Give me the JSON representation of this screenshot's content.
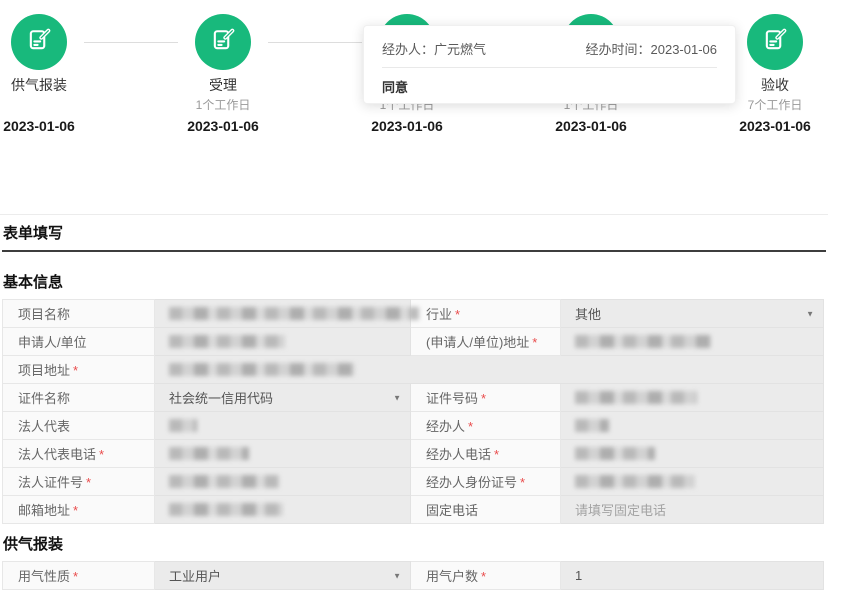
{
  "timeline": {
    "steps": [
      {
        "name": "供气报装",
        "duration": "",
        "date": "2023-01-06"
      },
      {
        "name": "受理",
        "duration": "1个工作日",
        "date": "2023-01-06"
      },
      {
        "name": "",
        "duration": "1个工作日",
        "date": "2023-01-06"
      },
      {
        "name": "",
        "duration": "1个工作日",
        "date": "2023-01-06"
      },
      {
        "name": "验收",
        "duration": "7个工作日",
        "date": "2023-01-06"
      }
    ],
    "tooltip": {
      "handler": "经办人：广元燃气",
      "time": "经办时间：2023-01-06",
      "opinion": "同意"
    }
  },
  "form": {
    "title": "表单填写",
    "required_marker": "*",
    "sections": [
      {
        "title": "基本信息",
        "rows": [
          {
            "cells": [
              {
                "label": "项目名称",
                "required": false,
                "type": "redacted",
                "blob_width": 250
              },
              {
                "label": "行业",
                "required": true,
                "type": "select",
                "value": "其他"
              }
            ]
          },
          {
            "cells": [
              {
                "label": "申请人/单位",
                "required": false,
                "type": "redacted",
                "blob_width": 116
              },
              {
                "label": "(申请人/单位)地址",
                "required": true,
                "type": "redacted",
                "blob_width": 136
              }
            ]
          },
          {
            "cells": [
              {
                "label": "项目地址",
                "required": true,
                "type": "redacted",
                "blob_width": 186,
                "full_row": true
              }
            ]
          },
          {
            "cells": [
              {
                "label": "证件名称",
                "required": false,
                "type": "select",
                "value": "社会统一信用代码"
              },
              {
                "label": "证件号码",
                "required": true,
                "type": "redacted",
                "blob_width": 122
              }
            ]
          },
          {
            "cells": [
              {
                "label": "法人代表",
                "required": false,
                "type": "redacted",
                "blob_width": 28
              },
              {
                "label": "经办人",
                "required": true,
                "type": "redacted",
                "blob_width": 34
              }
            ]
          },
          {
            "cells": [
              {
                "label": "法人代表电话",
                "required": true,
                "type": "redacted",
                "blob_width": 80
              },
              {
                "label": "经办人电话",
                "required": true,
                "type": "redacted",
                "blob_width": 80
              }
            ]
          },
          {
            "cells": [
              {
                "label": "法人证件号",
                "required": true,
                "type": "redacted",
                "blob_width": 110
              },
              {
                "label": "经办人身份证号",
                "required": true,
                "type": "redacted",
                "blob_width": 120
              }
            ]
          },
          {
            "cells": [
              {
                "label": "邮箱地址",
                "required": true,
                "type": "redacted",
                "blob_width": 114
              },
              {
                "label": "固定电话",
                "required": false,
                "type": "placeholder",
                "value": "请填写固定电话"
              }
            ]
          }
        ]
      },
      {
        "title": "供气报装",
        "rows": [
          {
            "cells": [
              {
                "label": "用气性质",
                "required": true,
                "type": "select",
                "value": "工业用户"
              },
              {
                "label": "用气户数",
                "required": true,
                "type": "text",
                "value": "1"
              }
            ]
          }
        ]
      }
    ]
  },
  "colors": {
    "accent_green": "#18b97c",
    "required_red": "#e94b4b",
    "input_gray": "#ebebeb"
  }
}
